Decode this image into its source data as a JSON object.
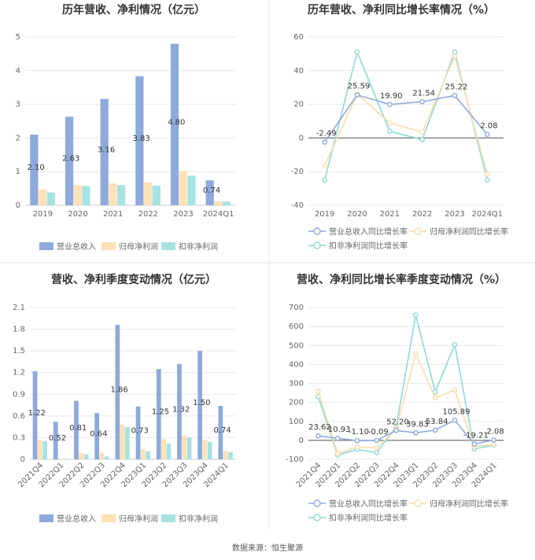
{
  "source_label": "数据来源：恒生聚源",
  "colors": {
    "revenue": "#8eaadb",
    "net_profit": "#fde2b8",
    "deducted_profit": "#a7e3e3",
    "revenue_line": "#8eaadb",
    "net_profit_line": "#fddcaa",
    "deducted_line": "#8ed9d9",
    "grid": "#e8e8e8",
    "divider": "#e6e6e6"
  },
  "chart_data": [
    {
      "type": "bar",
      "title": "历年营收、净利情况（亿元）",
      "categories": [
        "2019",
        "2020",
        "2021",
        "2022",
        "2023",
        "2024Q1"
      ],
      "ylim": [
        0,
        5
      ],
      "yticks": [
        "0",
        "1",
        "2",
        "3",
        "4",
        "5"
      ],
      "series": [
        {
          "name": "营业总收入",
          "values": [
            2.1,
            2.63,
            3.16,
            3.83,
            4.8,
            0.74
          ],
          "labels": [
            "2.10",
            "2.63",
            "3.16",
            "3.83",
            "4.80",
            "0.74"
          ]
        },
        {
          "name": "归母净利润",
          "values": [
            0.47,
            0.6,
            0.65,
            0.68,
            1.02,
            0.12
          ]
        },
        {
          "name": "扣非净利润",
          "values": [
            0.38,
            0.57,
            0.6,
            0.58,
            0.88,
            0.11
          ]
        }
      ],
      "legend": "bottom"
    },
    {
      "type": "line",
      "title": "历年营收、净利同比增长率情况（%）",
      "categories": [
        "2019",
        "2020",
        "2021",
        "2022",
        "2023",
        "2024Q1"
      ],
      "ylim": [
        -40,
        60
      ],
      "yticks": [
        "-40",
        "-20",
        "0",
        "20",
        "40",
        "60"
      ],
      "series": [
        {
          "name": "营业总收入同比增长率",
          "values": [
            -2.49,
            25.59,
            19.9,
            21.54,
            25.22,
            2.08
          ],
          "labels": [
            "-2.49",
            "25.59",
            "19.90",
            "21.54",
            "25.22",
            "2.08"
          ]
        },
        {
          "name": "归母净利润同比增长率",
          "values": [
            -16.5,
            26.0,
            9.0,
            3.5,
            48.5,
            -21.5
          ]
        },
        {
          "name": "扣非净利润同比增长率",
          "values": [
            -25.0,
            51.0,
            4.0,
            -1.0,
            51.0,
            -25.0
          ]
        }
      ],
      "legend": "bottom"
    },
    {
      "type": "bar",
      "title": "营收、净利季度变动情况（亿元）",
      "categories": [
        "2021Q4",
        "2022Q1",
        "2022Q2",
        "2022Q3",
        "2022Q4",
        "2023Q1",
        "2023Q2",
        "2023Q3",
        "2023Q4",
        "2024Q1"
      ],
      "ylim": [
        0,
        2.1
      ],
      "yticks": [
        "0",
        "0.3",
        "0.6",
        "0.9",
        "1.2",
        "1.5",
        "1.8",
        "2.1"
      ],
      "series": [
        {
          "name": "营业总收入",
          "values": [
            1.22,
            0.52,
            0.81,
            0.64,
            1.86,
            0.73,
            1.25,
            1.32,
            1.5,
            0.74
          ],
          "labels": [
            "1.22",
            "0.52",
            "0.81",
            "0.64",
            "1.86",
            "0.73",
            "1.25",
            "1.32",
            "1.50",
            "0.74"
          ]
        },
        {
          "name": "归母净利润",
          "values": [
            0.26,
            0.01,
            0.09,
            0.09,
            0.48,
            0.14,
            0.28,
            0.33,
            0.27,
            0.12
          ]
        },
        {
          "name": "扣非净利润",
          "values": [
            0.25,
            0.01,
            0.07,
            0.04,
            0.45,
            0.11,
            0.22,
            0.3,
            0.24,
            0.1
          ]
        }
      ],
      "legend": "bottom"
    },
    {
      "type": "line",
      "title": "营收、净利同比增长率季度变动情况（%）",
      "categories": [
        "2021Q4",
        "2022Q1",
        "2022Q2",
        "2022Q3",
        "2022Q4",
        "2023Q1",
        "2023Q2",
        "2023Q3",
        "2023Q4",
        "2024Q1"
      ],
      "ylim": [
        -100,
        700
      ],
      "yticks": [
        "-100",
        "0",
        "100",
        "200",
        "300",
        "400",
        "500",
        "600",
        "700"
      ],
      "series": [
        {
          "name": "营业总收入同比增长率",
          "values": [
            23.62,
            10.93,
            -1.1,
            -0.09,
            52.2,
            39.83,
            53.84,
            105.89,
            -19.21,
            2.08
          ],
          "labels": [
            "23.62",
            "10.93",
            "-1.10",
            "-0.09",
            "52.20",
            "39.83",
            "53.84",
            "105.89",
            "-19.21",
            "2.08"
          ]
        },
        {
          "name": "归母净利润同比增长率",
          "values": [
            258,
            -70,
            -35,
            -40,
            60,
            455,
            225,
            265,
            -32,
            -22
          ]
        },
        {
          "name": "扣非净利润同比增长率",
          "values": [
            230,
            -78,
            -48,
            -65,
            70,
            660,
            255,
            505,
            -45,
            -25
          ]
        }
      ],
      "legend": "bottom"
    }
  ]
}
